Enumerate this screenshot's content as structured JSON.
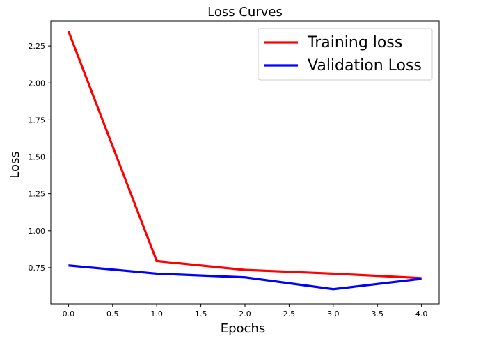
{
  "chart_data": {
    "type": "line",
    "title": "Loss Curves",
    "xlabel": "Epochs",
    "ylabel": "Loss",
    "x": [
      0,
      1,
      2,
      3,
      4
    ],
    "xlim": [
      -0.2,
      4.2
    ],
    "ylim": [
      0.505,
      2.42
    ],
    "xticks": [
      0.0,
      0.5,
      1.0,
      1.5,
      2.0,
      2.5,
      3.0,
      3.5,
      4.0
    ],
    "xtick_labels": [
      "0.0",
      "0.5",
      "1.0",
      "1.5",
      "2.0",
      "2.5",
      "3.0",
      "3.5",
      "4.0"
    ],
    "yticks": [
      0.75,
      1.0,
      1.25,
      1.5,
      1.75,
      2.0,
      2.25
    ],
    "ytick_labels": [
      "0.75",
      "1.00",
      "1.25",
      "1.50",
      "1.75",
      "2.00",
      "2.25"
    ],
    "grid": false,
    "legend_position": "top-right",
    "series": [
      {
        "name": "Training loss",
        "color": "#ff0000",
        "values": [
          2.35,
          0.795,
          0.735,
          0.71,
          0.68
        ]
      },
      {
        "name": "Validation Loss",
        "color": "#0000ff",
        "values": [
          0.765,
          0.71,
          0.685,
          0.605,
          0.675
        ]
      }
    ]
  }
}
